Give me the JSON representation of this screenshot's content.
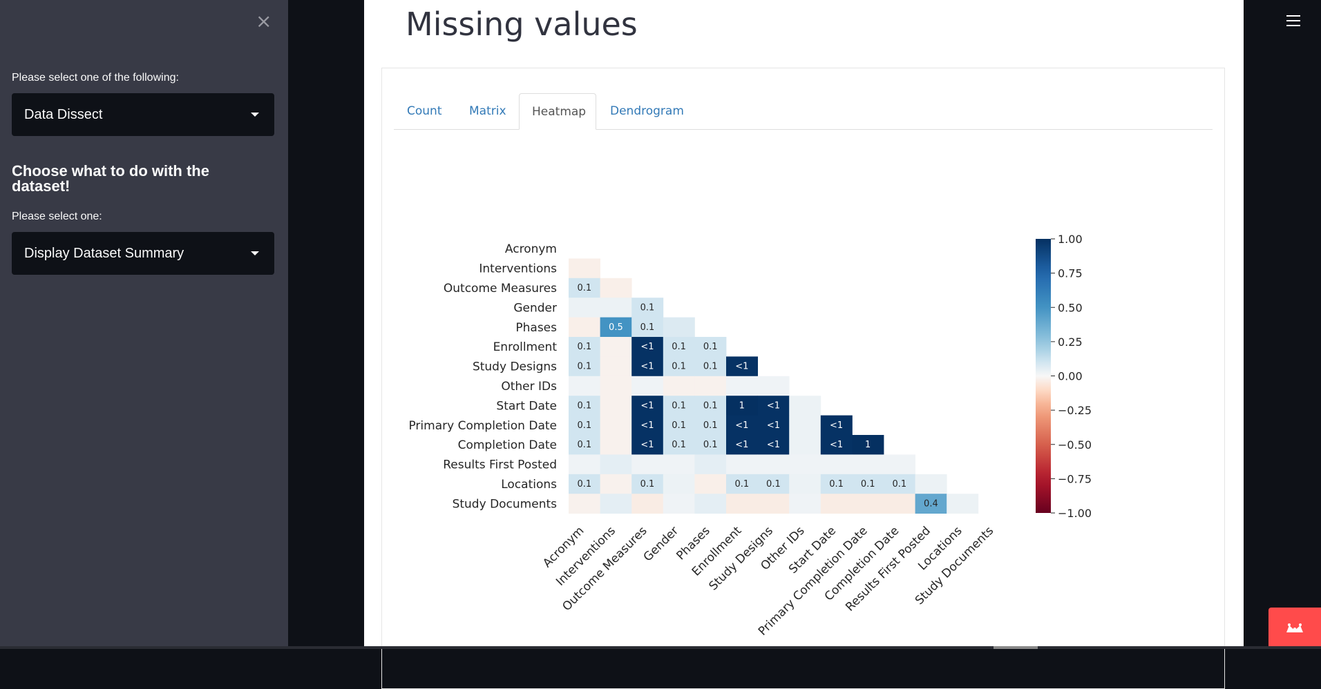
{
  "sidebar": {
    "close_symbol": "×",
    "select_label_1": "Please select one of the following:",
    "select_value_1": "Data Dissect",
    "heading": "Choose what to do with the dataset!",
    "select_label_2": "Please select one:",
    "select_value_2": "Display Dataset Summary"
  },
  "main": {
    "title": "Missing values",
    "tabs": [
      {
        "label": "Count",
        "active": false
      },
      {
        "label": "Matrix",
        "active": false
      },
      {
        "label": "Heatmap",
        "active": true
      },
      {
        "label": "Dendrogram",
        "active": false
      }
    ]
  },
  "icons": {
    "menu": "hamburger-menu-icon",
    "close": "close-icon",
    "dropdown": "chevron-down-icon",
    "fab": "crown-icon"
  },
  "colors": {
    "sidebar_bg": "#383a46",
    "app_bg": "#0e1117",
    "fab_red": "#ff4b4b",
    "tab_link": "#337ab7"
  },
  "chart_data": {
    "type": "heatmap",
    "variables": [
      "Acronym",
      "Interventions",
      "Outcome Measures",
      "Gender",
      "Phases",
      "Enrollment",
      "Study Designs",
      "Other IDs",
      "Start Date",
      "Primary Completion Date",
      "Completion Date",
      "Results First Posted",
      "Locations",
      "Study Documents"
    ],
    "colorbar": {
      "min": -1,
      "max": 1,
      "ticks": [
        "1.00",
        "0.75",
        "0.50",
        "0.25",
        "0.00",
        "−0.25",
        "−0.50",
        "−0.75",
        "−1.00"
      ],
      "colormap": "RdBu"
    },
    "cells": [
      {
        "row": 1,
        "col": 0,
        "value": -0.03,
        "label": ""
      },
      {
        "row": 2,
        "col": 0,
        "value": 0.1,
        "label": "0.1"
      },
      {
        "row": 2,
        "col": 1,
        "value": -0.03,
        "label": ""
      },
      {
        "row": 3,
        "col": 0,
        "value": 0.03,
        "label": ""
      },
      {
        "row": 3,
        "col": 1,
        "value": 0.03,
        "label": ""
      },
      {
        "row": 3,
        "col": 2,
        "value": 0.1,
        "label": "0.1"
      },
      {
        "row": 4,
        "col": 0,
        "value": -0.03,
        "label": ""
      },
      {
        "row": 4,
        "col": 1,
        "value": 0.5,
        "label": "0.5"
      },
      {
        "row": 4,
        "col": 2,
        "value": 0.1,
        "label": "0.1"
      },
      {
        "row": 4,
        "col": 3,
        "value": 0.07,
        "label": ""
      },
      {
        "row": 5,
        "col": 0,
        "value": 0.1,
        "label": "0.1"
      },
      {
        "row": 5,
        "col": 1,
        "value": -0.02,
        "label": ""
      },
      {
        "row": 5,
        "col": 2,
        "value": 0.99,
        "label": "<1"
      },
      {
        "row": 5,
        "col": 3,
        "value": 0.1,
        "label": "0.1"
      },
      {
        "row": 5,
        "col": 4,
        "value": 0.1,
        "label": "0.1"
      },
      {
        "row": 6,
        "col": 0,
        "value": 0.1,
        "label": "0.1"
      },
      {
        "row": 6,
        "col": 1,
        "value": -0.02,
        "label": ""
      },
      {
        "row": 6,
        "col": 2,
        "value": 0.99,
        "label": "<1"
      },
      {
        "row": 6,
        "col": 3,
        "value": 0.1,
        "label": "0.1"
      },
      {
        "row": 6,
        "col": 4,
        "value": 0.1,
        "label": "0.1"
      },
      {
        "row": 6,
        "col": 5,
        "value": 0.99,
        "label": "<1"
      },
      {
        "row": 7,
        "col": 0,
        "value": 0.02,
        "label": ""
      },
      {
        "row": 7,
        "col": 1,
        "value": -0.02,
        "label": ""
      },
      {
        "row": 7,
        "col": 2,
        "value": 0.02,
        "label": ""
      },
      {
        "row": 7,
        "col": 3,
        "value": -0.02,
        "label": ""
      },
      {
        "row": 7,
        "col": 4,
        "value": -0.02,
        "label": ""
      },
      {
        "row": 7,
        "col": 5,
        "value": 0.02,
        "label": ""
      },
      {
        "row": 7,
        "col": 6,
        "value": 0.02,
        "label": ""
      },
      {
        "row": 8,
        "col": 0,
        "value": 0.1,
        "label": "0.1"
      },
      {
        "row": 8,
        "col": 1,
        "value": -0.02,
        "label": ""
      },
      {
        "row": 8,
        "col": 2,
        "value": 0.99,
        "label": "<1"
      },
      {
        "row": 8,
        "col": 3,
        "value": 0.1,
        "label": "0.1"
      },
      {
        "row": 8,
        "col": 4,
        "value": 0.1,
        "label": "0.1"
      },
      {
        "row": 8,
        "col": 5,
        "value": 1.0,
        "label": "1"
      },
      {
        "row": 8,
        "col": 6,
        "value": 0.99,
        "label": "<1"
      },
      {
        "row": 8,
        "col": 7,
        "value": 0.03,
        "label": ""
      },
      {
        "row": 9,
        "col": 0,
        "value": 0.1,
        "label": "0.1"
      },
      {
        "row": 9,
        "col": 1,
        "value": -0.02,
        "label": ""
      },
      {
        "row": 9,
        "col": 2,
        "value": 0.99,
        "label": "<1"
      },
      {
        "row": 9,
        "col": 3,
        "value": 0.1,
        "label": "0.1"
      },
      {
        "row": 9,
        "col": 4,
        "value": 0.1,
        "label": "0.1"
      },
      {
        "row": 9,
        "col": 5,
        "value": 0.99,
        "label": "<1"
      },
      {
        "row": 9,
        "col": 6,
        "value": 0.99,
        "label": "<1"
      },
      {
        "row": 9,
        "col": 7,
        "value": 0.03,
        "label": ""
      },
      {
        "row": 9,
        "col": 8,
        "value": 0.99,
        "label": "<1"
      },
      {
        "row": 10,
        "col": 0,
        "value": 0.1,
        "label": "0.1"
      },
      {
        "row": 10,
        "col": 1,
        "value": -0.02,
        "label": ""
      },
      {
        "row": 10,
        "col": 2,
        "value": 0.99,
        "label": "<1"
      },
      {
        "row": 10,
        "col": 3,
        "value": 0.1,
        "label": "0.1"
      },
      {
        "row": 10,
        "col": 4,
        "value": 0.1,
        "label": "0.1"
      },
      {
        "row": 10,
        "col": 5,
        "value": 0.99,
        "label": "<1"
      },
      {
        "row": 10,
        "col": 6,
        "value": 0.99,
        "label": "<1"
      },
      {
        "row": 10,
        "col": 7,
        "value": 0.03,
        "label": ""
      },
      {
        "row": 10,
        "col": 8,
        "value": 0.99,
        "label": "<1"
      },
      {
        "row": 10,
        "col": 9,
        "value": 1.0,
        "label": "1"
      },
      {
        "row": 11,
        "col": 0,
        "value": 0.02,
        "label": ""
      },
      {
        "row": 11,
        "col": 1,
        "value": 0.05,
        "label": ""
      },
      {
        "row": 11,
        "col": 2,
        "value": 0.02,
        "label": ""
      },
      {
        "row": 11,
        "col": 3,
        "value": 0.02,
        "label": ""
      },
      {
        "row": 11,
        "col": 4,
        "value": 0.05,
        "label": ""
      },
      {
        "row": 11,
        "col": 5,
        "value": 0.02,
        "label": ""
      },
      {
        "row": 11,
        "col": 6,
        "value": 0.02,
        "label": ""
      },
      {
        "row": 11,
        "col": 7,
        "value": 0.02,
        "label": ""
      },
      {
        "row": 11,
        "col": 8,
        "value": 0.02,
        "label": ""
      },
      {
        "row": 11,
        "col": 9,
        "value": 0.02,
        "label": ""
      },
      {
        "row": 11,
        "col": 10,
        "value": 0.02,
        "label": ""
      },
      {
        "row": 12,
        "col": 0,
        "value": 0.1,
        "label": "0.1"
      },
      {
        "row": 12,
        "col": 1,
        "value": -0.02,
        "label": ""
      },
      {
        "row": 12,
        "col": 2,
        "value": 0.1,
        "label": "0.1"
      },
      {
        "row": 12,
        "col": 3,
        "value": 0.03,
        "label": ""
      },
      {
        "row": 12,
        "col": 4,
        "value": -0.03,
        "label": ""
      },
      {
        "row": 12,
        "col": 5,
        "value": 0.1,
        "label": "0.1"
      },
      {
        "row": 12,
        "col": 6,
        "value": 0.1,
        "label": "0.1"
      },
      {
        "row": 12,
        "col": 7,
        "value": 0.03,
        "label": ""
      },
      {
        "row": 12,
        "col": 8,
        "value": 0.1,
        "label": "0.1"
      },
      {
        "row": 12,
        "col": 9,
        "value": 0.1,
        "label": "0.1"
      },
      {
        "row": 12,
        "col": 10,
        "value": 0.1,
        "label": "0.1"
      },
      {
        "row": 12,
        "col": 11,
        "value": 0.03,
        "label": ""
      },
      {
        "row": 13,
        "col": 0,
        "value": -0.02,
        "label": ""
      },
      {
        "row": 13,
        "col": 1,
        "value": 0.05,
        "label": ""
      },
      {
        "row": 13,
        "col": 2,
        "value": -0.04,
        "label": ""
      },
      {
        "row": 13,
        "col": 3,
        "value": 0.02,
        "label": ""
      },
      {
        "row": 13,
        "col": 4,
        "value": 0.05,
        "label": ""
      },
      {
        "row": 13,
        "col": 5,
        "value": -0.04,
        "label": ""
      },
      {
        "row": 13,
        "col": 6,
        "value": -0.04,
        "label": ""
      },
      {
        "row": 13,
        "col": 7,
        "value": 0.02,
        "label": ""
      },
      {
        "row": 13,
        "col": 8,
        "value": -0.04,
        "label": ""
      },
      {
        "row": 13,
        "col": 9,
        "value": -0.04,
        "label": ""
      },
      {
        "row": 13,
        "col": 10,
        "value": -0.04,
        "label": ""
      },
      {
        "row": 13,
        "col": 11,
        "value": 0.4,
        "label": "0.4"
      },
      {
        "row": 13,
        "col": 12,
        "value": 0.03,
        "label": ""
      }
    ]
  }
}
